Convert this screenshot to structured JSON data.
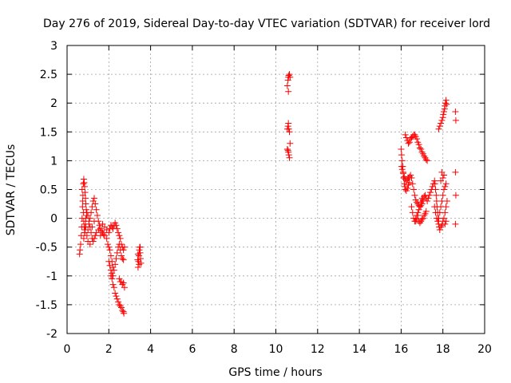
{
  "chart_data": {
    "type": "scatter",
    "title": "Day 276 of 2019, Sidereal Day-to-day VTEC variation (SDTVAR) for receiver lord",
    "xlabel": "GPS time / hours",
    "ylabel": "SDTVAR / TECUs",
    "xlim": [
      0,
      20
    ],
    "ylim": [
      -2,
      3
    ],
    "xticks": [
      "0",
      "2",
      "4",
      "6",
      "8",
      "10",
      "12",
      "14",
      "16",
      "18",
      "20"
    ],
    "yticks": [
      "-2",
      "-1.5",
      "-1",
      "-0.5",
      "0",
      "0.5",
      "1",
      "1.5",
      "2",
      "2.5",
      "3"
    ],
    "grid": true,
    "marker": "+",
    "color": "#ff0000",
    "series": [
      {
        "name": "SDTVAR",
        "points": [
          [
            0.6,
            -0.62
          ],
          [
            0.62,
            -0.55
          ],
          [
            0.65,
            -0.45
          ],
          [
            0.68,
            -0.3
          ],
          [
            0.7,
            -0.15
          ],
          [
            0.72,
            0.0
          ],
          [
            0.74,
            0.2
          ],
          [
            0.76,
            0.4
          ],
          [
            0.78,
            0.6
          ],
          [
            0.8,
            0.68
          ],
          [
            0.82,
            0.62
          ],
          [
            0.84,
            0.55
          ],
          [
            0.86,
            0.45
          ],
          [
            0.88,
            0.35
          ],
          [
            0.9,
            0.25
          ],
          [
            0.92,
            0.15
          ],
          [
            0.94,
            0.05
          ],
          [
            0.72,
            0.5
          ],
          [
            0.75,
            0.3
          ],
          [
            0.78,
            0.1
          ],
          [
            0.8,
            -0.05
          ],
          [
            0.82,
            -0.15
          ],
          [
            0.84,
            -0.25
          ],
          [
            0.86,
            -0.2
          ],
          [
            0.88,
            -0.1
          ],
          [
            0.9,
            0.0
          ],
          [
            0.95,
            0.1
          ],
          [
            1.0,
            0.05
          ],
          [
            1.05,
            -0.05
          ],
          [
            1.1,
            -0.15
          ],
          [
            1.15,
            -0.25
          ],
          [
            1.2,
            -0.35
          ],
          [
            1.25,
            -0.4
          ],
          [
            1.3,
            -0.35
          ],
          [
            1.35,
            -0.3
          ],
          [
            1.4,
            -0.25
          ],
          [
            0.95,
            -0.3
          ],
          [
            1.0,
            -0.2
          ],
          [
            1.05,
            -0.1
          ],
          [
            1.1,
            0.0
          ],
          [
            1.15,
            0.1
          ],
          [
            1.2,
            0.2
          ],
          [
            1.25,
            0.3
          ],
          [
            1.3,
            0.35
          ],
          [
            1.35,
            0.25
          ],
          [
            1.4,
            0.15
          ],
          [
            1.45,
            0.05
          ],
          [
            1.5,
            -0.05
          ],
          [
            1.55,
            -0.12
          ],
          [
            1.6,
            -0.18
          ],
          [
            1.65,
            -0.22
          ],
          [
            1.7,
            -0.25
          ],
          [
            1.75,
            -0.28
          ],
          [
            1.8,
            -0.3
          ],
          [
            0.8,
            -0.35
          ],
          [
            0.85,
            -0.25
          ],
          [
            0.9,
            -0.15
          ],
          [
            1.0,
            -0.4
          ],
          [
            1.1,
            -0.45
          ],
          [
            1.2,
            -0.15
          ],
          [
            1.3,
            -0.05
          ],
          [
            1.5,
            -0.2
          ],
          [
            1.6,
            -0.3
          ],
          [
            1.7,
            -0.1
          ],
          [
            1.8,
            -0.15
          ],
          [
            1.9,
            -0.2
          ],
          [
            2.0,
            -0.25
          ],
          [
            2.05,
            -0.18
          ],
          [
            2.1,
            -0.12
          ],
          [
            2.15,
            -0.15
          ],
          [
            2.2,
            -0.18
          ],
          [
            2.25,
            -0.12
          ],
          [
            2.3,
            -0.08
          ],
          [
            2.35,
            -0.12
          ],
          [
            2.4,
            -0.18
          ],
          [
            2.45,
            -0.25
          ],
          [
            2.5,
            -0.3
          ],
          [
            2.55,
            -0.35
          ],
          [
            2.6,
            -0.45
          ],
          [
            2.65,
            -0.5
          ],
          [
            2.7,
            -0.55
          ],
          [
            2.75,
            -0.5
          ],
          [
            1.9,
            -0.35
          ],
          [
            1.95,
            -0.45
          ],
          [
            2.0,
            -0.5
          ],
          [
            2.05,
            -0.55
          ],
          [
            2.1,
            -0.65
          ],
          [
            2.15,
            -0.75
          ],
          [
            2.2,
            -0.85
          ],
          [
            2.25,
            -0.9
          ],
          [
            2.3,
            -0.8
          ],
          [
            2.35,
            -0.7
          ],
          [
            2.4,
            -0.6
          ],
          [
            2.45,
            -0.5
          ],
          [
            2.5,
            -0.45
          ],
          [
            2.55,
            -0.55
          ],
          [
            2.6,
            -0.65
          ],
          [
            2.65,
            -0.7
          ],
          [
            2.7,
            -0.72
          ],
          [
            2.1,
            -1.0
          ],
          [
            2.15,
            -1.05
          ],
          [
            2.2,
            -1.15
          ],
          [
            2.25,
            -1.2
          ],
          [
            2.3,
            -1.3
          ],
          [
            2.35,
            -1.35
          ],
          [
            2.4,
            -1.4
          ],
          [
            2.45,
            -1.45
          ],
          [
            2.5,
            -1.5
          ],
          [
            2.55,
            -1.52
          ],
          [
            2.6,
            -1.55
          ],
          [
            2.65,
            -1.6
          ],
          [
            2.7,
            -1.62
          ],
          [
            2.72,
            -1.65
          ],
          [
            2.5,
            -1.05
          ],
          [
            2.55,
            -1.1
          ],
          [
            2.6,
            -1.1
          ],
          [
            2.65,
            -1.15
          ],
          [
            2.7,
            -1.12
          ],
          [
            2.75,
            -1.2
          ],
          [
            2.0,
            -0.75
          ],
          [
            2.05,
            -0.82
          ],
          [
            2.1,
            -0.9
          ],
          [
            2.15,
            -0.95
          ],
          [
            2.2,
            -1.0
          ],
          [
            3.4,
            -0.85
          ],
          [
            3.42,
            -0.75
          ],
          [
            3.44,
            -0.65
          ],
          [
            3.46,
            -0.55
          ],
          [
            3.48,
            -0.5
          ],
          [
            3.5,
            -0.6
          ],
          [
            3.52,
            -0.7
          ],
          [
            3.54,
            -0.78
          ],
          [
            3.38,
            -0.72
          ],
          [
            3.4,
            -0.62
          ],
          [
            3.45,
            -0.8
          ],
          [
            3.5,
            -0.5
          ],
          [
            10.55,
            1.55
          ],
          [
            10.58,
            1.6
          ],
          [
            10.6,
            1.65
          ],
          [
            10.62,
            1.55
          ],
          [
            10.65,
            1.5
          ],
          [
            10.55,
            1.2
          ],
          [
            10.58,
            1.18
          ],
          [
            10.6,
            1.15
          ],
          [
            10.62,
            1.1
          ],
          [
            10.65,
            1.05
          ],
          [
            10.68,
            1.3
          ],
          [
            10.55,
            2.3
          ],
          [
            10.58,
            2.4
          ],
          [
            10.6,
            2.45
          ],
          [
            10.62,
            2.48
          ],
          [
            10.65,
            2.5
          ],
          [
            10.68,
            2.45
          ],
          [
            10.6,
            2.2
          ],
          [
            16.0,
            1.2
          ],
          [
            16.02,
            1.1
          ],
          [
            16.05,
            1.0
          ],
          [
            16.08,
            0.9
          ],
          [
            16.1,
            0.8
          ],
          [
            16.12,
            0.7
          ],
          [
            16.15,
            0.6
          ],
          [
            16.18,
            0.55
          ],
          [
            16.2,
            0.5
          ],
          [
            16.25,
            0.48
          ],
          [
            16.3,
            0.52
          ],
          [
            16.35,
            0.58
          ],
          [
            16.4,
            0.62
          ],
          [
            16.02,
            0.9
          ],
          [
            16.05,
            0.85
          ],
          [
            16.1,
            0.78
          ],
          [
            16.15,
            0.72
          ],
          [
            16.2,
            0.68
          ],
          [
            16.25,
            0.65
          ],
          [
            16.3,
            0.68
          ],
          [
            16.35,
            0.7
          ],
          [
            16.4,
            0.72
          ],
          [
            16.45,
            0.75
          ],
          [
            16.5,
            0.7
          ],
          [
            16.55,
            0.6
          ],
          [
            16.6,
            0.5
          ],
          [
            16.65,
            0.4
          ],
          [
            16.7,
            0.32
          ],
          [
            16.75,
            0.28
          ],
          [
            16.8,
            0.25
          ],
          [
            16.85,
            0.22
          ],
          [
            16.9,
            0.2
          ],
          [
            16.95,
            0.22
          ],
          [
            17.0,
            0.25
          ],
          [
            17.05,
            0.3
          ],
          [
            16.2,
            1.45
          ],
          [
            16.25,
            1.4
          ],
          [
            16.3,
            1.35
          ],
          [
            16.35,
            1.3
          ],
          [
            16.4,
            1.32
          ],
          [
            16.45,
            1.38
          ],
          [
            16.5,
            1.4
          ],
          [
            16.55,
            1.42
          ],
          [
            16.6,
            1.45
          ],
          [
            16.65,
            1.45
          ],
          [
            16.7,
            1.42
          ],
          [
            16.75,
            1.38
          ],
          [
            16.8,
            1.32
          ],
          [
            16.85,
            1.28
          ],
          [
            16.9,
            1.22
          ],
          [
            16.95,
            1.2
          ],
          [
            17.0,
            1.15
          ],
          [
            17.05,
            1.12
          ],
          [
            17.1,
            1.08
          ],
          [
            17.15,
            1.05
          ],
          [
            17.2,
            1.02
          ],
          [
            17.25,
            1.0
          ],
          [
            16.5,
            0.2
          ],
          [
            16.55,
            0.1
          ],
          [
            16.6,
            0.0
          ],
          [
            16.65,
            -0.05
          ],
          [
            16.7,
            0.0
          ],
          [
            16.75,
            0.05
          ],
          [
            16.8,
            0.1
          ],
          [
            16.85,
            0.15
          ],
          [
            16.9,
            0.2
          ],
          [
            16.95,
            0.28
          ],
          [
            17.0,
            0.35
          ],
          [
            17.05,
            0.32
          ],
          [
            17.1,
            0.38
          ],
          [
            17.15,
            0.4
          ],
          [
            17.2,
            0.35
          ],
          [
            17.25,
            0.3
          ],
          [
            16.7,
            -0.05
          ],
          [
            16.75,
            -0.02
          ],
          [
            16.8,
            0.05
          ],
          [
            16.85,
            -0.05
          ],
          [
            16.9,
            -0.08
          ],
          [
            16.95,
            -0.05
          ],
          [
            17.0,
            -0.02
          ],
          [
            17.05,
            0.0
          ],
          [
            17.1,
            0.05
          ],
          [
            17.15,
            0.08
          ],
          [
            17.2,
            0.12
          ],
          [
            17.3,
            0.35
          ],
          [
            17.35,
            0.4
          ],
          [
            17.4,
            0.45
          ],
          [
            17.45,
            0.5
          ],
          [
            17.5,
            0.55
          ],
          [
            17.55,
            0.6
          ],
          [
            17.6,
            0.65
          ],
          [
            17.62,
            0.6
          ],
          [
            17.65,
            0.5
          ],
          [
            17.68,
            0.4
          ],
          [
            17.7,
            0.3
          ],
          [
            17.72,
            0.2
          ],
          [
            17.75,
            0.1
          ],
          [
            17.78,
            0.0
          ],
          [
            17.8,
            -0.1
          ],
          [
            17.82,
            -0.15
          ],
          [
            17.85,
            -0.2
          ],
          [
            17.6,
            0.2
          ],
          [
            17.65,
            0.1
          ],
          [
            17.7,
            0.0
          ],
          [
            17.75,
            -0.05
          ],
          [
            17.8,
            0.0
          ],
          [
            17.85,
            0.1
          ],
          [
            17.9,
            0.2
          ],
          [
            17.95,
            0.3
          ],
          [
            18.0,
            0.4
          ],
          [
            18.05,
            0.5
          ],
          [
            18.1,
            0.55
          ],
          [
            18.15,
            0.6
          ],
          [
            18.0,
            0.7
          ],
          [
            18.05,
            0.75
          ],
          [
            17.95,
            0.8
          ],
          [
            17.9,
            0.65
          ],
          [
            17.9,
            -0.15
          ],
          [
            17.95,
            -0.12
          ],
          [
            18.0,
            -0.05
          ],
          [
            18.05,
            0.0
          ],
          [
            18.1,
            0.1
          ],
          [
            18.15,
            0.2
          ],
          [
            18.2,
            0.3
          ],
          [
            18.1,
            -0.1
          ],
          [
            18.15,
            -0.05
          ],
          [
            17.8,
            1.55
          ],
          [
            17.85,
            1.6
          ],
          [
            17.9,
            1.65
          ],
          [
            17.95,
            1.7
          ],
          [
            18.0,
            1.75
          ],
          [
            18.02,
            1.8
          ],
          [
            18.05,
            1.85
          ],
          [
            18.08,
            1.9
          ],
          [
            18.1,
            1.95
          ],
          [
            18.12,
            2.0
          ],
          [
            18.15,
            2.05
          ],
          [
            18.18,
            1.98
          ],
          [
            18.6,
            1.85
          ],
          [
            18.62,
            1.7
          ],
          [
            18.6,
            0.8
          ],
          [
            18.62,
            0.4
          ],
          [
            18.6,
            -0.1
          ]
        ]
      }
    ]
  }
}
